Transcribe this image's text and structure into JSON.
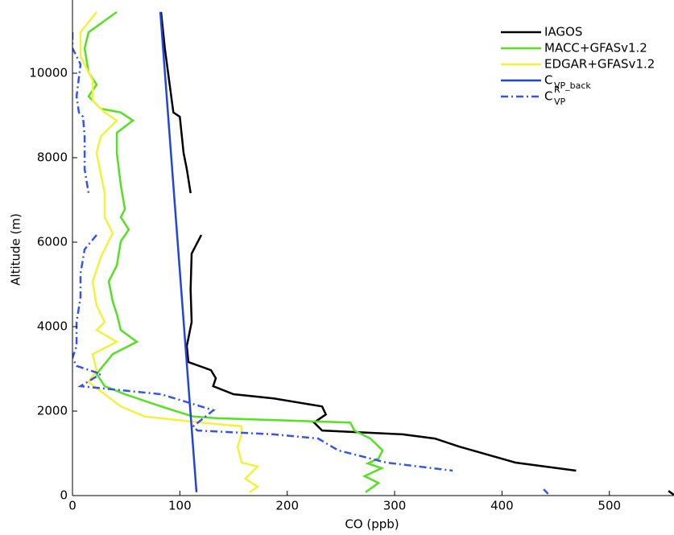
{
  "chart_data": {
    "type": "line",
    "xlabel": "CO (ppb)",
    "ylabel": "Altitude (m)",
    "xlim": [
      0,
      560
    ],
    "ylim": [
      0,
      11450
    ],
    "xticks": [
      0,
      100,
      200,
      300,
      400,
      500
    ],
    "yticks": [
      0,
      2000,
      4000,
      6000,
      8000,
      10000
    ],
    "legend": "upper right",
    "series": [
      {
        "name": "IAGOS",
        "color": "#000000",
        "dash": "solid",
        "x": [
          82.5,
          86,
          94,
          100,
          103.5,
          106.5,
          110,
          null,
          120,
          111,
          110,
          111,
          106.5,
          108,
          129,
          133.5,
          131,
          150,
          187.5,
          232.5,
          236,
          225,
          232.5,
          307.5,
          337.5,
          360,
          412.5,
          469,
          null,
          555,
          560
        ],
        "y": [
          11450,
          10590,
          9070,
          8970,
          8110,
          7730,
          7160,
          null,
          6170,
          5730,
          4880,
          4110,
          3540,
          3160,
          2970,
          2780,
          2590,
          2400,
          2300,
          2110,
          1920,
          1730,
          1540,
          1450,
          1350,
          1160,
          780,
          590,
          null,
          110,
          20
        ]
      },
      {
        "name": "MACC+GFASv1.2",
        "color": "#55e022",
        "dash": "solid",
        "x": [
          41.3,
          15,
          11.3,
          15,
          22.5,
          15,
          26.3,
          45,
          56.3,
          41.3,
          41.3,
          45,
          48.8,
          45,
          52.5,
          45,
          41.3,
          33.8,
          37.5,
          41.3,
          45,
          60,
          37.5,
          22.5,
          30,
          48.8,
          82.5,
          112.5,
          135,
          258.8,
          262.5,
          277.5,
          288.8,
          285,
          275,
          288,
          272,
          285,
          273
        ],
        "y": [
          11450,
          10970,
          10590,
          10020,
          9730,
          9450,
          9160,
          9070,
          8880,
          8590,
          8110,
          7350,
          6780,
          6590,
          6300,
          6020,
          5450,
          5070,
          4590,
          4300,
          3920,
          3640,
          3350,
          2880,
          2590,
          2400,
          2110,
          1870,
          1830,
          1730,
          1540,
          1350,
          1070,
          880,
          760,
          650,
          460,
          300,
          80
        ]
      },
      {
        "name": "EDGAR+GFASv1.2",
        "color": "#f2f23a",
        "dash": "solid",
        "x": [
          22.5,
          7.5,
          7.5,
          18.8,
          18.8,
          30,
          41.3,
          26.3,
          22.5,
          30,
          30,
          37.5,
          26.3,
          18.8,
          22.5,
          30,
          22.5,
          41.3,
          18.8,
          22.5,
          15,
          30,
          45,
          67.5,
          120,
          157.5,
          157.5,
          153.8,
          157.5,
          172.5,
          161,
          172.5,
          165
        ],
        "y": [
          11450,
          10970,
          10400,
          9830,
          9350,
          9070,
          8880,
          8500,
          8110,
          7160,
          6590,
          6210,
          5640,
          5070,
          4500,
          4110,
          3920,
          3640,
          3350,
          2970,
          2690,
          2400,
          2110,
          1870,
          1730,
          1640,
          1450,
          1160,
          780,
          690,
          400,
          210,
          80
        ]
      },
      {
        "name": "C",
        "subscript": "VP_back",
        "color": "#2244dd",
        "dash": "solid",
        "x": [
          81.8,
          115.5
        ],
        "y": [
          11450,
          80
        ]
      },
      {
        "name": "C",
        "superscript": "R",
        "subscript": "VP",
        "color": "#3355ee",
        "dash": "dashdot",
        "x": [
          0,
          0,
          3.8,
          7.5,
          3.8,
          6,
          9.8,
          11.3,
          11.3,
          15,
          null,
          22.5,
          11.3,
          7.5,
          7.5,
          3.8,
          3.8,
          0,
          3.8,
          26.3,
          7.5,
          82.5,
          131.3,
          112.5,
          116.3,
          187.5,
          228.8,
          247.5,
          292.5,
          354,
          null,
          438.8,
          443
        ],
        "y": [
          10970,
          10590,
          10400,
          10210,
          9450,
          9070,
          8970,
          8500,
          7730,
          7160,
          null,
          6170,
          5830,
          5260,
          4690,
          4110,
          3540,
          3260,
          3070,
          2880,
          2590,
          2400,
          2020,
          1640,
          1540,
          1450,
          1350,
          1070,
          780,
          590,
          null,
          150,
          40
        ]
      }
    ]
  }
}
